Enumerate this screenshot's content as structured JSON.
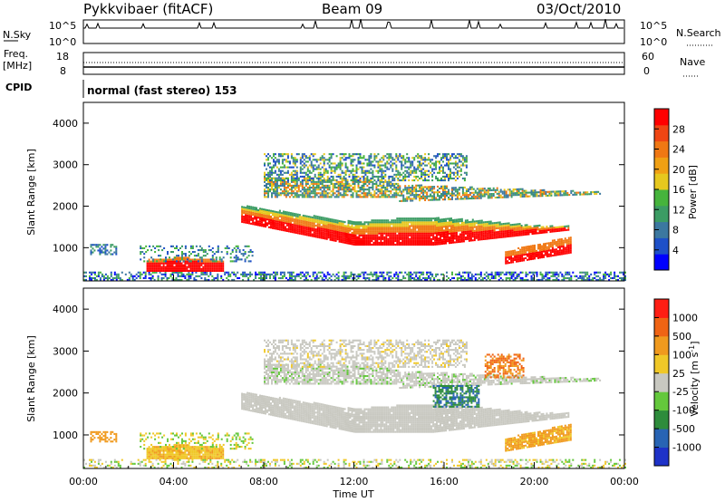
{
  "header": {
    "station": "Pykkvibaer (fitACF)",
    "beam": "Beam 09",
    "date": "03/Oct/2010"
  },
  "strip_labels": {
    "nsky": "N.Sky",
    "nsearch": "N.Search",
    "nsky_tick_top": "10^5",
    "nsky_tick_bottom": "10^0",
    "freq_line1": "Freq.",
    "freq_line2": "[MHz]",
    "freq_tick_top": "18",
    "freq_tick_bottom": "8",
    "nave": "Nave",
    "nave_tick_top": "60",
    "nave_tick_bottom": "0",
    "cpid": "CPID",
    "cpid_value": "normal (fast stereo) 153"
  },
  "chart_data": [
    {
      "type": "heatmap",
      "name": "power",
      "ylabel": "Slant Range [km]",
      "xlabel": "",
      "ylim": [
        200,
        4500
      ],
      "yticks": [
        "1000",
        "2000",
        "3000",
        "4000"
      ],
      "colorbar": {
        "label": "Power [dB]",
        "ticks": [
          "28",
          "24",
          "20",
          "16",
          "12",
          "8",
          "4"
        ],
        "colors": [
          "#0000ff",
          "#1e50c8",
          "#3c78a0",
          "#3c9c64",
          "#46b43c",
          "#e6c81e",
          "#f0a014",
          "#f07814",
          "#f04614",
          "#ff0000"
        ]
      }
    },
    {
      "type": "heatmap",
      "name": "velocity",
      "ylabel": "Slant Range [km]",
      "xlabel": "Time UT",
      "ylim": [
        200,
        4500
      ],
      "yticks": [
        "1000",
        "2000",
        "3000",
        "4000"
      ],
      "xticks": [
        "00:00",
        "04:00",
        "08:00",
        "12:00",
        "16:00",
        "20:00",
        "00:00"
      ],
      "colorbar": {
        "label": "Velocity [m s",
        "label_exp": "-1",
        "label_close": "]",
        "ticks": [
          "1000",
          "500",
          "100",
          "25",
          "-25",
          "-100",
          "-500",
          "-1000"
        ],
        "colors": [
          "#1e32c8",
          "#2864b4",
          "#2e8c3c",
          "#64c83c",
          "#c8c8c0",
          "#f0c828",
          "#f09a1e",
          "#f06414",
          "#ff1e14"
        ]
      }
    }
  ],
  "colors": {
    "ground_scatter": "#c0c0b8",
    "green": "#3c9c50",
    "orange": "#f0a028",
    "red": "#f03214"
  }
}
